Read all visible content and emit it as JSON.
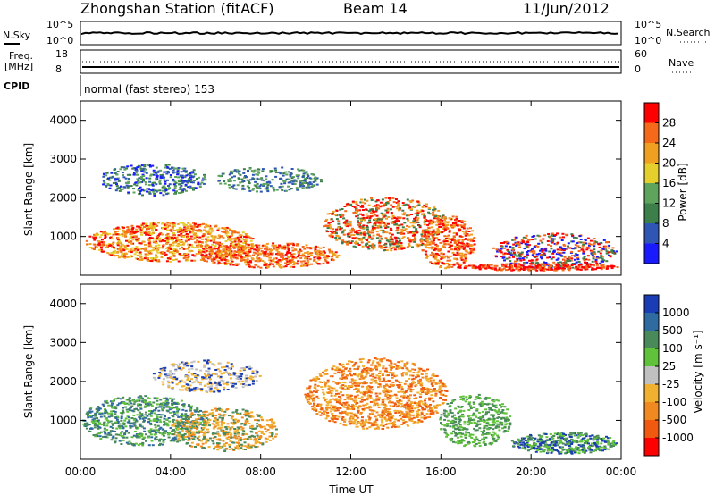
{
  "header": {
    "station": "Zhongshan Station (fitACF)",
    "beam": "Beam 14",
    "date": "11/Jun/2012"
  },
  "top_panels": {
    "nsky_label": "N.Sky",
    "nsky_ticks": [
      "10^5",
      "10^0"
    ],
    "nsearch_label": "N.Search",
    "nsearch_ticks": [
      "10^5",
      "10^0"
    ],
    "freq_label": "Freq.",
    "freq_unit": "[MHz]",
    "freq_ticks": [
      "18",
      "8"
    ],
    "nave_label": "Nave",
    "nave_ticks": [
      "60",
      "0"
    ],
    "cpid_label": "CPID",
    "cpid_text": "normal (fast stereo) 153"
  },
  "colors": {
    "power_scale": [
      "#1a1aff",
      "#2f56b4",
      "#3d7f4a",
      "#5fa45c",
      "#e5cf2c",
      "#f0a020",
      "#f56a1a",
      "#ff0000"
    ],
    "velocity_scale": [
      "#1a3cb4",
      "#2f6aa0",
      "#4a8a5a",
      "#5fc23a",
      "#c0c0c0",
      "#f0b030",
      "#f08a20",
      "#f05a10",
      "#ff0000"
    ]
  },
  "chart_data": [
    {
      "type": "heatmap",
      "ylabel": "Slant Range [km]",
      "y_ticks": [
        "1000",
        "2000",
        "3000",
        "4000"
      ],
      "ylim": [
        0,
        4500
      ],
      "x_ticks": [
        "00:00",
        "04:00",
        "08:00",
        "12:00",
        "16:00",
        "20:00",
        "00:00"
      ],
      "colorbar_label": "Power [dB]",
      "colorbar_ticks": [
        "4",
        "8",
        "12",
        "16",
        "20",
        "24",
        "28"
      ]
    },
    {
      "type": "heatmap",
      "ylabel": "Slant Range [km]",
      "xlabel": "Time UT",
      "y_ticks": [
        "1000",
        "2000",
        "3000",
        "4000"
      ],
      "ylim": [
        0,
        4500
      ],
      "x_ticks": [
        "00:00",
        "04:00",
        "08:00",
        "12:00",
        "16:00",
        "20:00",
        "00:00"
      ],
      "colorbar_label": "Velocity [m s⁻¹]",
      "colorbar_ticks": [
        "1000",
        "500",
        "100",
        "25",
        "-25",
        "-100",
        "-500",
        "-1000"
      ]
    }
  ]
}
